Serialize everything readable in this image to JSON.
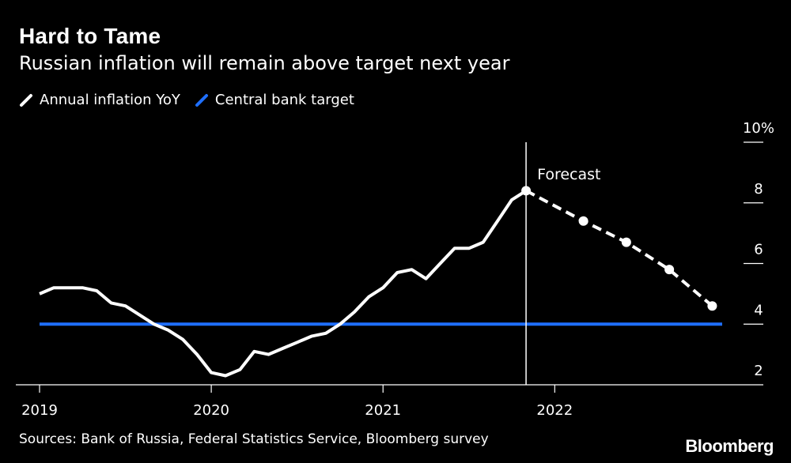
{
  "colors": {
    "background": "#000000",
    "text": "#ffffff",
    "inflation_line": "#ffffff",
    "target_line": "#1f6fff"
  },
  "legend_icons": [
    "slash-line-icon",
    "slash-line-icon"
  ],
  "source_text": "Sources: Bank of Russia, Federal Statistics Service, Bloomberg survey",
  "brand": "Bloomberg",
  "chart_data": {
    "type": "line",
    "title": "Hard to Tame",
    "subtitle": "Russian inflation will remain above target next year",
    "xlabel": "",
    "ylabel": "",
    "xlim": [
      2019.0,
      2022.975
    ],
    "ylim": [
      2,
      10
    ],
    "x_ticks": [
      {
        "value": 2019,
        "label": "2019"
      },
      {
        "value": 2020,
        "label": "2020"
      },
      {
        "value": 2021,
        "label": "2021"
      },
      {
        "value": 2022,
        "label": "2022"
      }
    ],
    "y_ticks": [
      {
        "value": 10,
        "label": "10%"
      },
      {
        "value": 8,
        "label": "8"
      },
      {
        "value": 6,
        "label": "6"
      },
      {
        "value": 4,
        "label": "4"
      },
      {
        "value": 2,
        "label": "2"
      }
    ],
    "legend_position": "top-left",
    "series": [
      {
        "name": "Annual inflation YoY",
        "color": "#ffffff",
        "style": "solid",
        "points": [
          [
            2019.0,
            5.0
          ],
          [
            2019.083,
            5.2
          ],
          [
            2019.167,
            5.2
          ],
          [
            2019.25,
            5.2
          ],
          [
            2019.333,
            5.1
          ],
          [
            2019.417,
            4.7
          ],
          [
            2019.5,
            4.6
          ],
          [
            2019.583,
            4.3
          ],
          [
            2019.667,
            4.0
          ],
          [
            2019.75,
            3.8
          ],
          [
            2019.833,
            3.5
          ],
          [
            2019.917,
            3.0
          ],
          [
            2020.0,
            2.4
          ],
          [
            2020.083,
            2.3
          ],
          [
            2020.167,
            2.5
          ],
          [
            2020.25,
            3.1
          ],
          [
            2020.333,
            3.0
          ],
          [
            2020.417,
            3.2
          ],
          [
            2020.5,
            3.4
          ],
          [
            2020.583,
            3.6
          ],
          [
            2020.667,
            3.7
          ],
          [
            2020.75,
            4.0
          ],
          [
            2020.833,
            4.4
          ],
          [
            2020.917,
            4.9
          ],
          [
            2021.0,
            5.2
          ],
          [
            2021.083,
            5.7
          ],
          [
            2021.167,
            5.8
          ],
          [
            2021.25,
            5.5
          ],
          [
            2021.333,
            6.0
          ],
          [
            2021.417,
            6.5
          ],
          [
            2021.5,
            6.5
          ],
          [
            2021.583,
            6.7
          ],
          [
            2021.667,
            7.4
          ],
          [
            2021.75,
            8.1
          ],
          [
            2021.833,
            8.4
          ]
        ]
      },
      {
        "name": "Forecast",
        "color": "#ffffff",
        "style": "dashed",
        "markers": true,
        "points": [
          [
            2021.833,
            8.4
          ],
          [
            2022.167,
            7.4
          ],
          [
            2022.417,
            6.7
          ],
          [
            2022.667,
            5.8
          ],
          [
            2022.917,
            4.6
          ]
        ]
      },
      {
        "name": "Central bank target",
        "color": "#1f6fff",
        "style": "solid",
        "points": [
          [
            2019.0,
            4.0
          ],
          [
            2022.975,
            4.0
          ]
        ]
      }
    ],
    "annotations": [
      {
        "type": "vline",
        "x": 2021.833,
        "label": "Forecast"
      }
    ]
  }
}
